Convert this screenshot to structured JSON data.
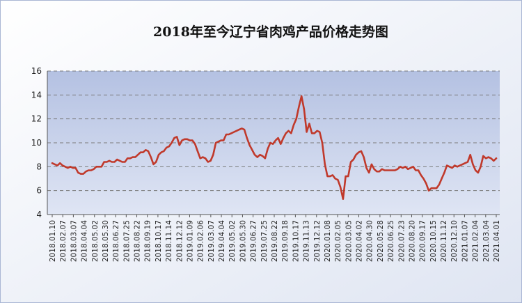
{
  "chart_data": {
    "type": "line",
    "title": "2018年至今辽宁省肉鸡产品价格走势图",
    "xlabel": "",
    "ylabel": "",
    "ylim": [
      4,
      16
    ],
    "yticks": [
      4,
      6,
      8,
      10,
      12,
      14,
      16
    ],
    "grid": true,
    "legend": "none",
    "colors": {
      "line": "#c0392b",
      "plot_bg": "#c7d1ea",
      "outer_bg": "#e3e8f4",
      "grid": "#7a7a7a",
      "frame": "#a9b6d4"
    },
    "x_tick_labels": [
      "2018.01.10",
      "2018.02.07",
      "2018.03.07",
      "2018.04.04",
      "2018.05.02",
      "2018.05.30",
      "2018.06.27",
      "2018.07.25",
      "2018.08.22",
      "2018.09.19",
      "2018.10.17",
      "2018.11.14",
      "2018.12.12",
      "2019.01.09",
      "2019.02.06",
      "2019.03.07",
      "2019.04.04",
      "2019.05.02",
      "2019.05.30",
      "2019.06.27",
      "2019.07.25",
      "2019.08.22",
      "2019.09.18",
      "2019.10.17",
      "2019.11.13",
      "2019.12.12",
      "2020.01.08",
      "2020.02.05",
      "2020.03.05",
      "2020.04.02",
      "2020.04.30",
      "2020.05.28",
      "2020.06.25",
      "2020.07.23",
      "2020.08.20",
      "2020.09.17",
      "2020.10.15",
      "2020.11.12",
      "2020.12.10",
      "2021.01.07",
      "2021.02.04",
      "2021.03.04",
      "2021.04.01"
    ],
    "series": [
      {
        "values": [
          8.3,
          8.2,
          8.1,
          8.3,
          8.1,
          8.0,
          7.9,
          8.0,
          7.9,
          7.9,
          7.5,
          7.4,
          7.4,
          7.6,
          7.7,
          7.7,
          7.8,
          8.0,
          8.0,
          8.0,
          8.4,
          8.4,
          8.5,
          8.4,
          8.4,
          8.6,
          8.5,
          8.4,
          8.4,
          8.7,
          8.7,
          8.8,
          8.8,
          9.0,
          9.2,
          9.2,
          9.4,
          9.3,
          8.8,
          8.2,
          8.4,
          9.0,
          9.2,
          9.3,
          9.6,
          9.7,
          10.0,
          10.4,
          10.5,
          9.8,
          10.2,
          10.3,
          10.3,
          10.2,
          10.2,
          9.9,
          9.3,
          8.7,
          8.8,
          8.7,
          8.4,
          8.5,
          9.0,
          10.0,
          10.1,
          10.2,
          10.2,
          10.7,
          10.7,
          10.8,
          10.9,
          11.0,
          11.1,
          11.2,
          11.1,
          10.4,
          9.8,
          9.4,
          9.0,
          8.8,
          9.0,
          8.9,
          8.7,
          9.5,
          10.0,
          9.9,
          10.2,
          10.4,
          9.9,
          10.4,
          10.8,
          11.0,
          10.8,
          11.5,
          12.0,
          13.0,
          13.9,
          12.8,
          10.9,
          11.6,
          10.8,
          10.8,
          11.0,
          10.9,
          10.0,
          8.2,
          7.2,
          7.2,
          7.3,
          7.0,
          6.9,
          6.3,
          5.3,
          7.2,
          7.2,
          8.4,
          8.6,
          9.0,
          9.2,
          9.3,
          8.8,
          7.9,
          7.5,
          8.2,
          7.8,
          7.6,
          7.6,
          7.8,
          7.7,
          7.7,
          7.7,
          7.7,
          7.7,
          7.8,
          8.0,
          7.9,
          8.0,
          7.8,
          7.9,
          8.0,
          7.7,
          7.7,
          7.3,
          7.0,
          6.6,
          6.0,
          6.2,
          6.2,
          6.2,
          6.5,
          7.0,
          7.5,
          8.1,
          8.0,
          7.9,
          8.1,
          8.0,
          8.1,
          8.2,
          8.3,
          8.4,
          9.0,
          8.2,
          7.7,
          7.5,
          8.0,
          8.9,
          8.7,
          8.8,
          8.7,
          8.5,
          8.7
        ]
      }
    ]
  }
}
